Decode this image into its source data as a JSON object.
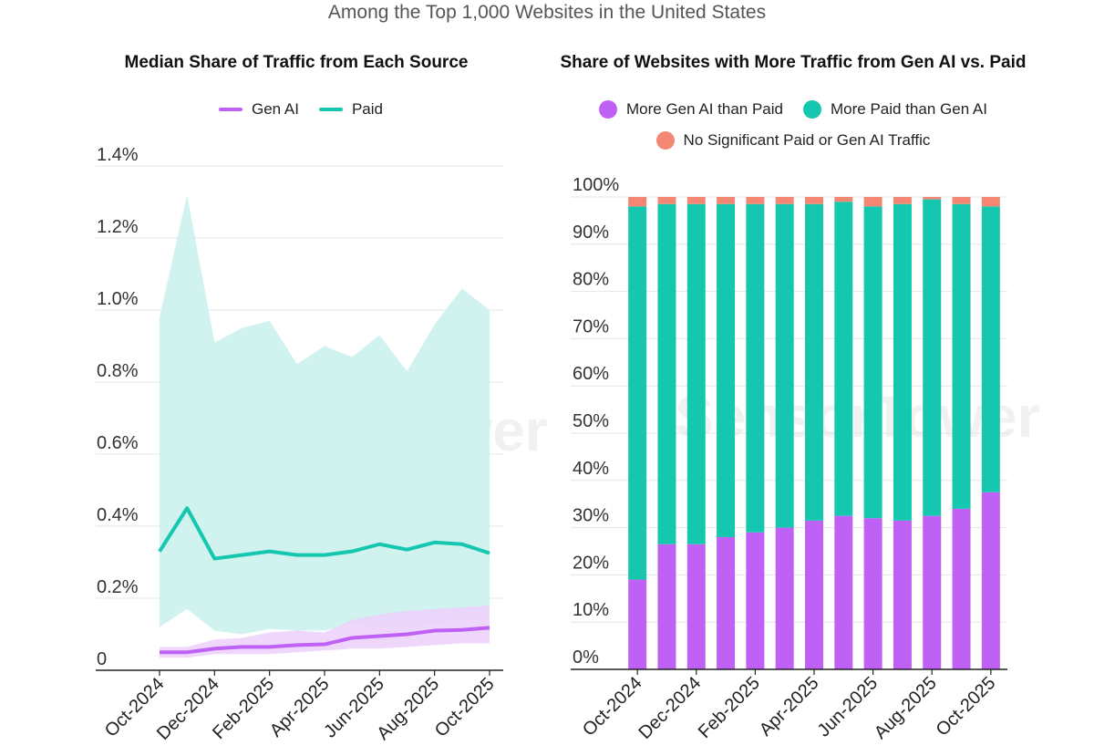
{
  "subtitle": "Among the Top 1,000 Websites in the United States",
  "watermark": "SensorTower",
  "colors": {
    "gen_ai": "#c061f5",
    "paid": "#15c7ae",
    "paid_band": "#cdf2ee",
    "gen_ai_band": "#ecd3fb",
    "none": "#f38773",
    "grid": "#e5e5e5",
    "axis": "#222222"
  },
  "chart_data": [
    {
      "type": "line",
      "title": "Median Share of Traffic from Each Source",
      "x": [
        "Oct-2024",
        "Nov-2024",
        "Dec-2024",
        "Jan-2025",
        "Feb-2025",
        "Mar-2025",
        "Apr-2025",
        "May-2025",
        "Jun-2025",
        "Jul-2025",
        "Aug-2025",
        "Sep-2025",
        "Oct-2025"
      ],
      "tick_labels": [
        "Oct-2024",
        "Dec-2024",
        "Feb-2025",
        "Apr-2025",
        "Jun-2025",
        "Aug-2025",
        "Oct-2025"
      ],
      "y_ticks": [
        "0",
        "0.2%",
        "0.4%",
        "0.6%",
        "0.8%",
        "1.0%",
        "1.2%",
        "1.4%"
      ],
      "ylim": [
        0,
        1.4
      ],
      "legend": [
        "Gen AI",
        "Paid"
      ],
      "series": [
        {
          "name": "Gen AI",
          "values": [
            0.05,
            0.05,
            0.06,
            0.065,
            0.065,
            0.07,
            0.072,
            0.09,
            0.095,
            0.1,
            0.11,
            0.112,
            0.118
          ]
        },
        {
          "name": "Paid",
          "values": [
            0.33,
            0.45,
            0.31,
            0.32,
            0.33,
            0.32,
            0.32,
            0.33,
            0.35,
            0.335,
            0.355,
            0.35,
            0.325
          ]
        }
      ],
      "bands": [
        {
          "series": "Paid",
          "upper": [
            0.98,
            1.32,
            0.91,
            0.95,
            0.97,
            0.85,
            0.9,
            0.87,
            0.93,
            0.83,
            0.96,
            1.06,
            1.0
          ],
          "lower": [
            0.12,
            0.17,
            0.11,
            0.1,
            0.115,
            0.11,
            0.11,
            0.13,
            0.12,
            0.12,
            0.13,
            0.14,
            0.145
          ]
        },
        {
          "series": "Gen AI",
          "upper": [
            0.065,
            0.065,
            0.085,
            0.09,
            0.105,
            0.11,
            0.105,
            0.14,
            0.155,
            0.165,
            0.17,
            0.175,
            0.18
          ],
          "lower": [
            0.035,
            0.035,
            0.045,
            0.045,
            0.045,
            0.05,
            0.055,
            0.06,
            0.06,
            0.065,
            0.07,
            0.075,
            0.075
          ]
        }
      ]
    },
    {
      "type": "bar",
      "stacked": true,
      "title": "Share of Websites with More Traffic from Gen AI vs. Paid",
      "categories": [
        "Oct-2024",
        "Nov-2024",
        "Dec-2024",
        "Jan-2025",
        "Feb-2025",
        "Mar-2025",
        "Apr-2025",
        "May-2025",
        "Jun-2025",
        "Jul-2025",
        "Aug-2025",
        "Sep-2025",
        "Oct-2025"
      ],
      "tick_labels": [
        "Oct-2024",
        "Dec-2024",
        "Feb-2025",
        "Apr-2025",
        "Jun-2025",
        "Aug-2025",
        "Oct-2025"
      ],
      "y_ticks": [
        "0%",
        "10%",
        "20%",
        "30%",
        "40%",
        "50%",
        "60%",
        "70%",
        "80%",
        "90%",
        "100%"
      ],
      "ylim": [
        0,
        100
      ],
      "series": [
        {
          "name": "More Gen AI than Paid",
          "values": [
            19,
            26.5,
            26.5,
            28,
            29,
            30,
            31.5,
            32.5,
            32,
            31.5,
            32.5,
            34,
            37.5
          ]
        },
        {
          "name": "More Paid than Gen AI",
          "values": [
            79,
            72,
            72,
            70.5,
            69.5,
            68.5,
            67,
            66.5,
            66,
            67,
            67,
            64.5,
            60.5
          ]
        },
        {
          "name": "No Significant Paid or Gen AI Traffic",
          "values": [
            2,
            1.5,
            1.5,
            1.5,
            1.5,
            1.5,
            1.5,
            1,
            2,
            1.5,
            0.5,
            1.5,
            2
          ]
        }
      ]
    }
  ]
}
